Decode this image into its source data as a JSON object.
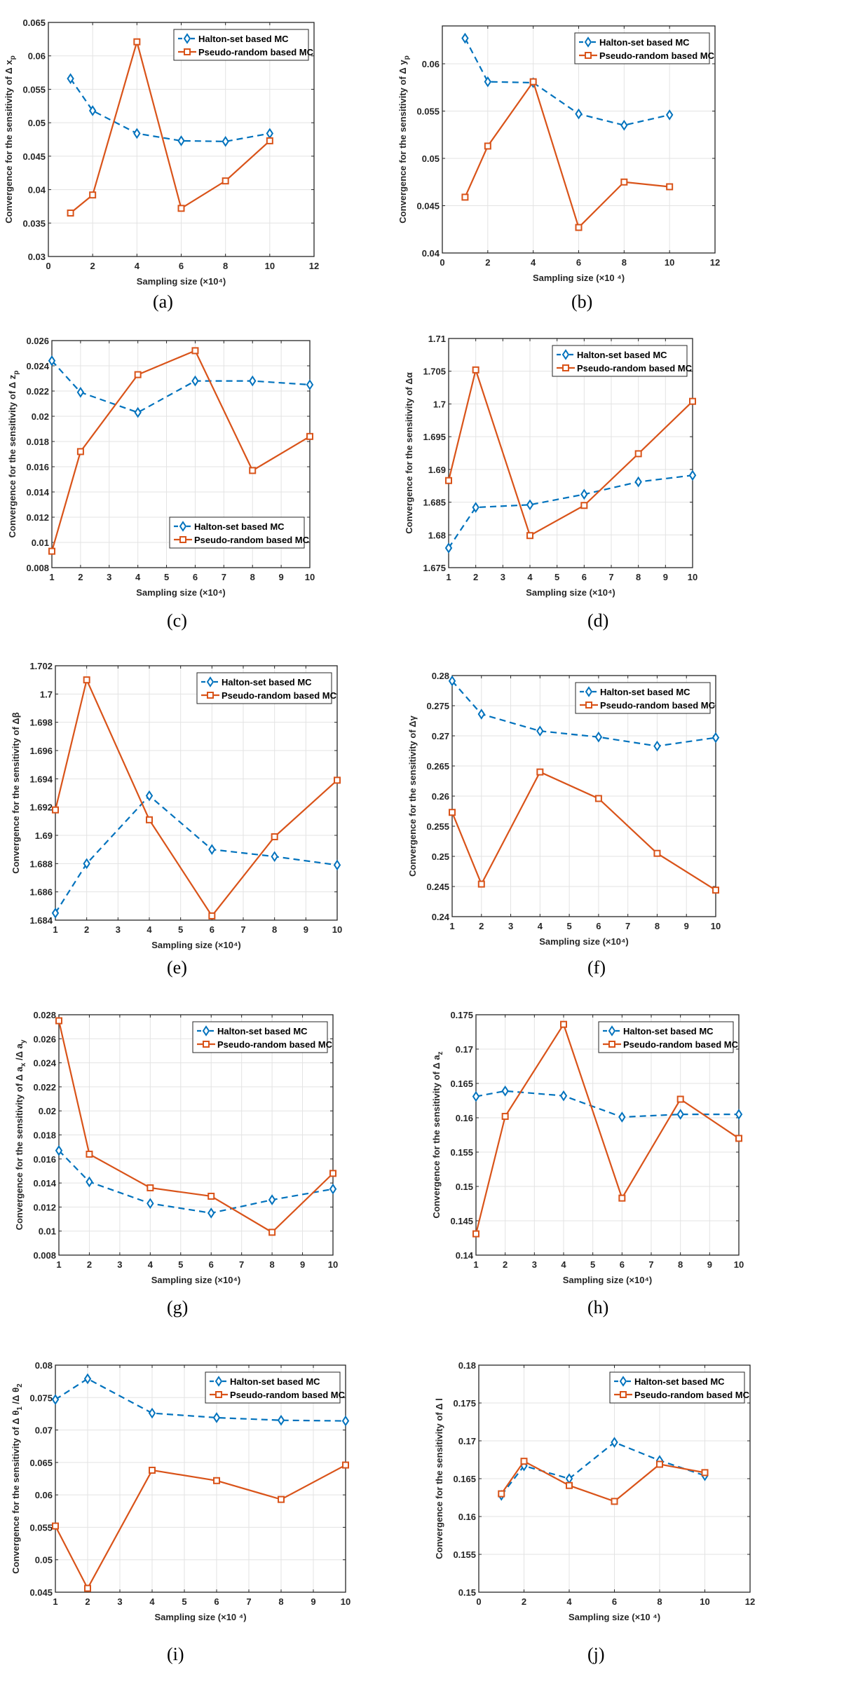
{
  "legend": {
    "halton": "Halton-set based MC",
    "pseudo": "Pseudo-random based MC"
  },
  "colors": {
    "halton": "#0072BD",
    "pseudo": "#D95319",
    "grid": "#e3e3e3",
    "axis": "#262626"
  },
  "chart_data": [
    {
      "id": "a",
      "caption": "(a)",
      "type": "line",
      "xlabel": "Sampling size (×10⁴)",
      "ylabel": "Convergence for the sensitivity of  Δ x",
      "ylabel_sub": "p",
      "x": [
        1,
        2,
        4,
        6,
        8,
        10
      ],
      "xlim": [
        0,
        12
      ],
      "xticks": [
        0,
        2,
        4,
        6,
        8,
        10,
        12
      ],
      "ylim": [
        0.03,
        0.065
      ],
      "yticks": [
        "0.03",
        "0.035",
        "0.04",
        "0.045",
        "0.05",
        "0.055",
        "0.06",
        "0.065"
      ],
      "grid": true,
      "legend_position": "top-right",
      "series": [
        {
          "name": "Halton-set based MC",
          "values": [
            0.0566,
            0.0518,
            0.0484,
            0.0473,
            0.0472,
            0.0484
          ]
        },
        {
          "name": "Pseudo-random based MC",
          "values": [
            0.0365,
            0.0392,
            0.0621,
            0.0372,
            0.0413,
            0.0473
          ]
        }
      ]
    },
    {
      "id": "b",
      "caption": "(b)",
      "type": "line",
      "xlabel": "Sampling size (×10 ⁴)",
      "ylabel": "Convergence for the sensitivity of   Δ y",
      "ylabel_sub": "p",
      "x": [
        1,
        2,
        4,
        6,
        8,
        10
      ],
      "xlim": [
        0,
        12
      ],
      "xticks": [
        0,
        2,
        4,
        6,
        8,
        10,
        12
      ],
      "ylim": [
        0.04,
        0.064
      ],
      "yticks": [
        "0.04",
        "0.045",
        "0.05",
        "0.055",
        "0.06"
      ],
      "ytick_values": [
        0.04,
        0.045,
        0.05,
        0.055,
        0.06
      ],
      "grid": true,
      "legend_position": "top-right",
      "series": [
        {
          "name": "Halton-set based MC",
          "values": [
            0.0627,
            0.0581,
            0.058,
            0.0547,
            0.0535,
            0.0546
          ]
        },
        {
          "name": "Pseudo-random based MC",
          "values": [
            0.0459,
            0.0513,
            0.0581,
            0.0427,
            0.0475,
            0.047
          ]
        }
      ]
    },
    {
      "id": "c",
      "caption": "(c)",
      "type": "line",
      "xlabel": "Sampling size (×10⁴)",
      "ylabel": "Convergence for the sensitivity of   Δ z",
      "ylabel_sub": "p",
      "x": [
        1,
        2,
        4,
        6,
        8,
        10
      ],
      "xlim": [
        1,
        10
      ],
      "xticks": [
        1,
        2,
        3,
        4,
        5,
        6,
        7,
        8,
        9,
        10
      ],
      "ylim": [
        0.008,
        0.026
      ],
      "yticks": [
        "0.008",
        "0.01",
        "0.012",
        "0.014",
        "0.016",
        "0.018",
        "0.02",
        "0.022",
        "0.024",
        "0.026"
      ],
      "grid": true,
      "legend_position": "bottom-right",
      "series": [
        {
          "name": "Halton-set based MC",
          "values": [
            0.0244,
            0.0219,
            0.0203,
            0.0228,
            0.0228,
            0.0225
          ]
        },
        {
          "name": "Pseudo-random based MC",
          "values": [
            0.0093,
            0.0172,
            0.0233,
            0.0252,
            0.0157,
            0.0184
          ]
        }
      ]
    },
    {
      "id": "d",
      "caption": "(d)",
      "type": "line",
      "xlabel": "Sampling size (×10⁴)",
      "ylabel": "Convergence for the sensitivity of    Δα",
      "ylabel_sub": "",
      "x": [
        1,
        2,
        4,
        6,
        8,
        10
      ],
      "xlim": [
        1,
        10
      ],
      "xticks": [
        1,
        2,
        3,
        4,
        5,
        6,
        7,
        8,
        9,
        10
      ],
      "ylim": [
        1.675,
        1.71
      ],
      "yticks": [
        "1.675",
        "1.68",
        "1.685",
        "1.69",
        "1.695",
        "1.7",
        "1.705",
        "1.71"
      ],
      "grid": true,
      "legend_position": "top-right",
      "series": [
        {
          "name": "Halton-set based MC",
          "values": [
            1.678,
            1.6842,
            1.6846,
            1.6862,
            1.6881,
            1.6891
          ]
        },
        {
          "name": "Pseudo-random based MC",
          "values": [
            1.6883,
            1.7052,
            1.6799,
            1.6845,
            1.6924,
            1.7004
          ]
        }
      ]
    },
    {
      "id": "e",
      "caption": "(e)",
      "type": "line",
      "xlabel": "Sampling size (×10⁴)",
      "ylabel": "Convergence for the sensitivity of    Δβ",
      "ylabel_sub": "",
      "x": [
        1,
        2,
        4,
        6,
        8,
        10
      ],
      "xlim": [
        1,
        10
      ],
      "xticks": [
        1,
        2,
        3,
        4,
        5,
        6,
        7,
        8,
        9,
        10
      ],
      "ylim": [
        1.684,
        1.702
      ],
      "yticks": [
        "1.684",
        "1.686",
        "1.688",
        "1.69",
        "1.692",
        "1.694",
        "1.696",
        "1.698",
        "1.7",
        "1.702"
      ],
      "grid": true,
      "legend_position": "top-right",
      "series": [
        {
          "name": "Halton-set based MC",
          "values": [
            1.6845,
            1.688,
            1.6928,
            1.689,
            1.6885,
            1.6879
          ]
        },
        {
          "name": "Pseudo-random based MC",
          "values": [
            1.6918,
            1.701,
            1.6911,
            1.6843,
            1.6899,
            1.6939
          ]
        }
      ]
    },
    {
      "id": "f",
      "caption": "(f)",
      "type": "line",
      "xlabel": "Sampling size (×10⁴)",
      "ylabel": "Convergence for the sensitivity of    Δγ",
      "ylabel_sub": "",
      "x": [
        1,
        2,
        4,
        6,
        8,
        10
      ],
      "xlim": [
        1,
        10
      ],
      "xticks": [
        1,
        2,
        3,
        4,
        5,
        6,
        7,
        8,
        9,
        10
      ],
      "ylim": [
        0.24,
        0.28
      ],
      "yticks": [
        "0.24",
        "0.245",
        "0.25",
        "0.255",
        "0.26",
        "0.265",
        "0.27",
        "0.275",
        "0.28"
      ],
      "grid": true,
      "legend_position": "top-right",
      "series": [
        {
          "name": "Halton-set based MC",
          "values": [
            0.2791,
            0.2736,
            0.2708,
            0.2698,
            0.2683,
            0.2697
          ]
        },
        {
          "name": "Pseudo-random based MC",
          "values": [
            0.2573,
            0.2454,
            0.264,
            0.2596,
            0.2505,
            0.2444
          ]
        }
      ]
    },
    {
      "id": "g",
      "caption": "(g)",
      "type": "line",
      "xlabel": "Sampling size (×10⁴)",
      "ylabel": "Convergence for the sensitivity of   Δ a",
      "ylabel_sub": "x",
      "ylabel_tail": " /Δ a",
      "ylabel_sub2": "y",
      "x": [
        1,
        2,
        4,
        6,
        8,
        10
      ],
      "xlim": [
        1,
        10
      ],
      "xticks": [
        1,
        2,
        3,
        4,
        5,
        6,
        7,
        8,
        9,
        10
      ],
      "ylim": [
        0.008,
        0.028
      ],
      "yticks": [
        "0.008",
        "0.01",
        "0.012",
        "0.014",
        "0.016",
        "0.018",
        "0.02",
        "0.022",
        "0.024",
        "0.026",
        "0.028"
      ],
      "grid": true,
      "legend_position": "top-right",
      "series": [
        {
          "name": "Halton-set based MC",
          "values": [
            0.0167,
            0.0141,
            0.0123,
            0.0115,
            0.0126,
            0.0135
          ]
        },
        {
          "name": "Pseudo-random based MC",
          "values": [
            0.0275,
            0.0164,
            0.0136,
            0.0129,
            0.0099,
            0.0148
          ]
        }
      ]
    },
    {
      "id": "h",
      "caption": "(h)",
      "type": "line",
      "xlabel": "Sampling size (×10⁴)",
      "ylabel": "Convergence for the sensitivity of    Δ a",
      "ylabel_sub": "z",
      "x": [
        1,
        2,
        4,
        6,
        8,
        10
      ],
      "xlim": [
        1,
        10
      ],
      "xticks": [
        1,
        2,
        3,
        4,
        5,
        6,
        7,
        8,
        9,
        10
      ],
      "ylim": [
        0.14,
        0.175
      ],
      "yticks": [
        "0.14",
        "0.145",
        "0.15",
        "0.155",
        "0.16",
        "0.165",
        "0.17",
        "0.175"
      ],
      "grid": true,
      "legend_position": "top-right",
      "series": [
        {
          "name": "Halton-set based MC",
          "values": [
            0.1631,
            0.1639,
            0.1632,
            0.1601,
            0.1605,
            0.1605
          ]
        },
        {
          "name": "Pseudo-random based MC",
          "values": [
            0.1431,
            0.1602,
            0.1736,
            0.1483,
            0.1627,
            0.157
          ]
        }
      ]
    },
    {
      "id": "i",
      "caption": "(i)",
      "type": "line",
      "xlabel": "Sampling size (×10 ⁴)",
      "ylabel": "Convergence for the sensitivity of   Δ θ",
      "ylabel_sub": "1",
      "ylabel_tail": " /Δ θ",
      "ylabel_sub2": "2",
      "x": [
        1,
        2,
        4,
        6,
        8,
        10
      ],
      "xlim": [
        1,
        10
      ],
      "xticks": [
        1,
        2,
        3,
        4,
        5,
        6,
        7,
        8,
        9,
        10
      ],
      "ylim": [
        0.045,
        0.08
      ],
      "yticks": [
        "0.045",
        "0.05",
        "0.055",
        "0.06",
        "0.065",
        "0.07",
        "0.075",
        "0.08"
      ],
      "grid": true,
      "legend_position": "top-right",
      "series": [
        {
          "name": "Halton-set based MC",
          "values": [
            0.0747,
            0.0779,
            0.0726,
            0.0719,
            0.0715,
            0.0714
          ]
        },
        {
          "name": "Pseudo-random based MC",
          "values": [
            0.0552,
            0.0456,
            0.0638,
            0.0622,
            0.0593,
            0.0646
          ]
        }
      ]
    },
    {
      "id": "j",
      "caption": "(j)",
      "type": "line",
      "xlabel": "Sampling size (×10   ⁴)",
      "ylabel": "Convergence for the sensitivity of     Δ l",
      "ylabel_sub": "",
      "x": [
        1,
        2,
        4,
        6,
        8,
        10
      ],
      "xlim": [
        0,
        12
      ],
      "xticks": [
        0,
        2,
        4,
        6,
        8,
        10,
        12
      ],
      "ylim": [
        0.15,
        0.18
      ],
      "yticks": [
        "0.15",
        "0.155",
        "0.16",
        "0.165",
        "0.17",
        "0.175",
        "0.18"
      ],
      "grid": true,
      "legend_position": "top-right",
      "series": [
        {
          "name": "Halton-set based MC",
          "values": [
            0.1628,
            0.1667,
            0.165,
            0.1698,
            0.1674,
            0.1654
          ]
        },
        {
          "name": "Pseudo-random based MC",
          "values": [
            0.163,
            0.1673,
            0.1641,
            0.162,
            0.1669,
            0.1658
          ]
        }
      ]
    }
  ]
}
